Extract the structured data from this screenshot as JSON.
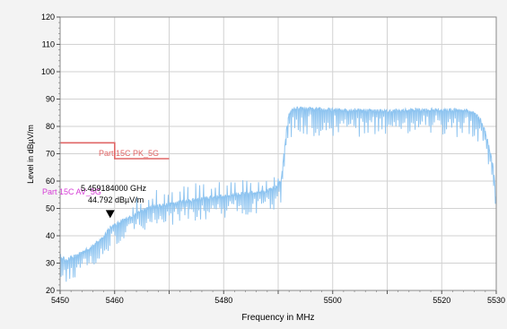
{
  "chart_data": {
    "type": "line",
    "xlabel": "Frequency in MHz",
    "ylabel": "Level in dBµV/m",
    "xlim": [
      5450,
      5530
    ],
    "ylim": [
      20,
      120
    ],
    "x_ticks": [
      5450,
      5460,
      5480,
      5500,
      5520,
      5530
    ],
    "x_tick_labels": [
      "5450",
      "5460",
      "5480",
      "5500",
      "5520",
      "5530"
    ],
    "y_ticks": [
      20,
      30,
      40,
      50,
      60,
      70,
      80,
      90,
      100,
      110,
      120
    ],
    "y_tick_labels": [
      "20",
      "30",
      "40",
      "50",
      "60",
      "70",
      "80",
      "90",
      "100",
      "110",
      "120"
    ],
    "grid": true,
    "colors": {
      "trace": "#8ec4f0",
      "peak_limit": "#e06666",
      "avg_limit": "#d63cd6",
      "marker": "#000000"
    },
    "limits": [
      {
        "name": "Part 15C PK_5G",
        "label": "Part 15C PK_5G",
        "points": [
          [
            5450,
            74
          ],
          [
            5460,
            74
          ],
          [
            5460,
            68.2
          ],
          [
            5470,
            68.2
          ]
        ]
      },
      {
        "name": "Part 15C AV_5G",
        "label": "Part 15C AV_5G",
        "points": []
      }
    ],
    "series": [
      {
        "points": [
          [
            5450,
            33
          ],
          [
            5451,
            31
          ],
          [
            5452,
            32
          ],
          [
            5453,
            32.5
          ],
          [
            5454,
            34
          ],
          [
            5455,
            35
          ],
          [
            5456,
            36.5
          ],
          [
            5457,
            38
          ],
          [
            5458,
            40
          ],
          [
            5459.18,
            43
          ],
          [
            5460,
            44
          ],
          [
            5461,
            45
          ],
          [
            5462,
            46
          ],
          [
            5463,
            47
          ],
          [
            5464,
            48
          ],
          [
            5465,
            49
          ],
          [
            5466,
            50
          ],
          [
            5467,
            50.5
          ],
          [
            5468,
            51
          ],
          [
            5470,
            51.5
          ],
          [
            5472,
            52.5
          ],
          [
            5474,
            53
          ],
          [
            5476,
            53.5
          ],
          [
            5478,
            54
          ],
          [
            5480,
            54.5
          ],
          [
            5482,
            55
          ],
          [
            5484,
            55.5
          ],
          [
            5486,
            56
          ],
          [
            5488,
            56.5
          ],
          [
            5489.5,
            57.5
          ],
          [
            5490.5,
            60
          ],
          [
            5491.5,
            78
          ],
          [
            5492,
            85
          ],
          [
            5493,
            86.5
          ],
          [
            5495,
            86.5
          ],
          [
            5500,
            86
          ],
          [
            5505,
            86
          ],
          [
            5510,
            85.5
          ],
          [
            5515,
            86
          ],
          [
            5520,
            86
          ],
          [
            5524,
            86
          ],
          [
            5526,
            85
          ],
          [
            5527,
            83
          ],
          [
            5528,
            78
          ],
          [
            5529,
            70
          ],
          [
            5529.5,
            65
          ],
          [
            5530,
            52
          ]
        ]
      }
    ],
    "marker": {
      "x": 5459.184,
      "y": 44.792,
      "label_freq": "5.459184000 GHz",
      "label_level": "44.792 dBµV/m"
    }
  }
}
